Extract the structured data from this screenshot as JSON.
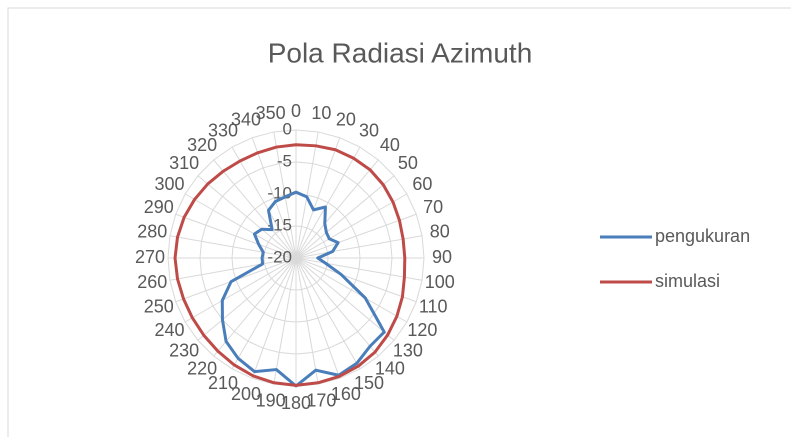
{
  "chart_data": {
    "type": "radar",
    "title": "Pola Radiasi Azimuth",
    "categories": [
      "0",
      "10",
      "20",
      "30",
      "40",
      "50",
      "60",
      "70",
      "80",
      "90",
      "100",
      "110",
      "120",
      "130",
      "140",
      "150",
      "160",
      "170",
      "180",
      "190",
      "200",
      "210",
      "220",
      "230",
      "240",
      "250",
      "260",
      "270",
      "280",
      "290",
      "300",
      "310",
      "320",
      "330",
      "340",
      "350"
    ],
    "series": [
      {
        "name": "pengukuran",
        "color": "#4a7ebb",
        "values": [
          -9.7,
          -10.3,
          -12,
          -10.8,
          -13,
          -13.8,
          -14,
          -13,
          -14.2,
          -16.6,
          -15.3,
          -12.5,
          -7.5,
          -2,
          -2,
          -1,
          -0.5,
          -2.2,
          0,
          -2.3,
          -1.1,
          -1.9,
          -3,
          -5,
          -6.7,
          -9.2,
          -14.7,
          -14.7,
          -14.8,
          -13.8,
          -12.5,
          -13,
          -14.2,
          -11.4,
          -10.6,
          -10.3
        ]
      },
      {
        "name": "simulasi",
        "color": "#be4b48",
        "values": [
          -2.3,
          -2.2,
          -2,
          -2,
          -2,
          -2.2,
          -2.5,
          -2.8,
          -3,
          -3,
          -2.8,
          -2.3,
          -1.8,
          -1.3,
          -0.8,
          -0.5,
          -0.3,
          -0.2,
          -0.1,
          -0.2,
          -0.4,
          -0.7,
          -1,
          -1.2,
          -1.3,
          -1.3,
          -1.2,
          -1.1,
          -1.2,
          -1.4,
          -1.7,
          -2,
          -2.3,
          -2.5,
          -2.5,
          -2.4
        ]
      }
    ],
    "ylim": [
      -20,
      0
    ],
    "yticks": [
      -20,
      -15,
      -10,
      -5,
      0
    ],
    "grid": true,
    "legend": "right"
  }
}
